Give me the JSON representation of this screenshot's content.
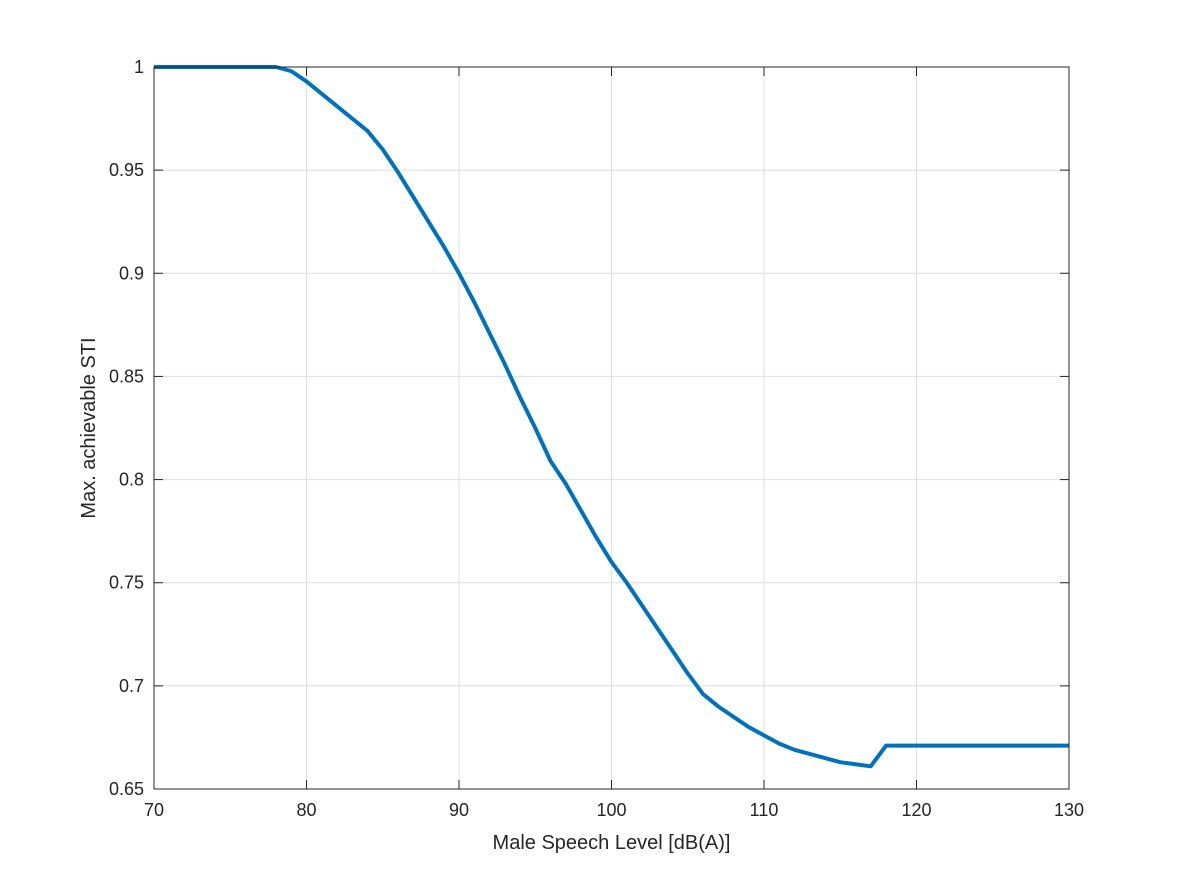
{
  "chart_data": {
    "type": "line",
    "title": "",
    "xlabel": "Male Speech Level [dB(A)]",
    "ylabel": "Max. achievable STI",
    "xlim": [
      70,
      130
    ],
    "ylim": [
      0.65,
      1
    ],
    "xticks": [
      70,
      80,
      90,
      100,
      110,
      120,
      130
    ],
    "yticks": [
      0.65,
      0.7,
      0.75,
      0.8,
      0.85,
      0.9,
      0.95,
      1
    ],
    "x_tick_labels": [
      "70",
      "80",
      "90",
      "100",
      "110",
      "120",
      "130"
    ],
    "y_tick_labels": [
      "0.65",
      "0.7",
      "0.75",
      "0.8",
      "0.85",
      "0.9",
      "0.95",
      "1"
    ],
    "grid": true,
    "box": true,
    "series": [
      {
        "color": "#0072BD",
        "x": [
          70,
          71,
          72,
          73,
          74,
          75,
          76,
          77,
          78,
          79,
          80,
          81,
          82,
          83,
          84,
          85,
          86,
          87,
          88,
          89,
          90,
          91,
          92,
          93,
          94,
          95,
          96,
          97,
          98,
          99,
          100,
          101,
          102,
          103,
          104,
          105,
          106,
          107,
          108,
          109,
          110,
          111,
          112,
          113,
          114,
          115,
          116,
          117,
          118,
          119,
          120,
          121,
          122,
          123,
          124,
          125,
          126,
          127,
          128,
          129,
          130
        ],
        "y": [
          1.0,
          1.0,
          1.0,
          1.0,
          1.0,
          1.0,
          1.0,
          1.0,
          1.0,
          0.998,
          0.993,
          0.987,
          0.981,
          0.975,
          0.969,
          0.96,
          0.949,
          0.937,
          0.925,
          0.913,
          0.9,
          0.886,
          0.871,
          0.856,
          0.84,
          0.825,
          0.809,
          0.798,
          0.785,
          0.772,
          0.76,
          0.75,
          0.739,
          0.728,
          0.717,
          0.706,
          0.696,
          0.69,
          0.685,
          0.68,
          0.676,
          0.672,
          0.669,
          0.667,
          0.665,
          0.663,
          0.662,
          0.661,
          0.671,
          0.671,
          0.671,
          0.671,
          0.671,
          0.671,
          0.671,
          0.671,
          0.671,
          0.671,
          0.671,
          0.671,
          0.671
        ]
      }
    ]
  },
  "figure": {
    "background": "#ffffff",
    "axes_color": "#262626",
    "grid_color": "#dfdfdf",
    "line_color": "#0072BD"
  }
}
